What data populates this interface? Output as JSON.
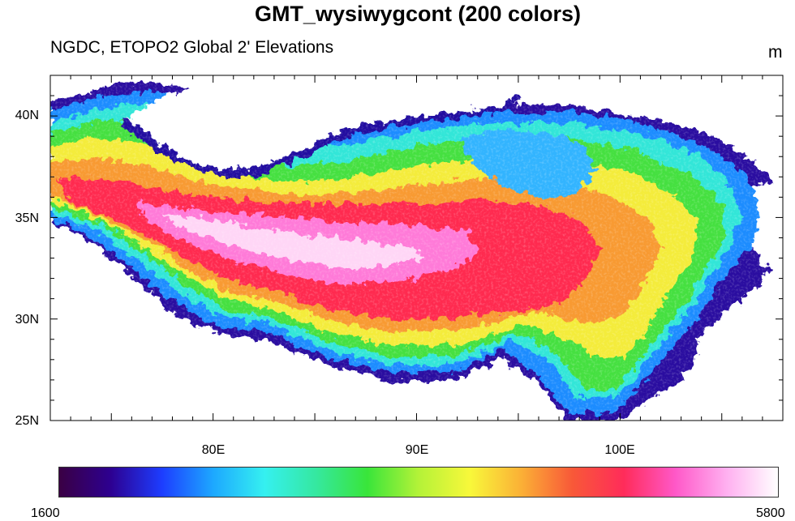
{
  "title": "GMT_wysiwygcont (200 colors)",
  "subtitle": "NGDC, ETOPO2 Global 2' Elevations",
  "units": "m",
  "axes": {
    "y_ticks": [
      "40N",
      "35N",
      "30N",
      "25N"
    ],
    "x_ticks": [
      "80E",
      "90E",
      "100E"
    ]
  },
  "colorbar": {
    "min_label": "1600",
    "max_label": "5800",
    "colors": [
      "#3a0044",
      "#2d0090",
      "#1d3dff",
      "#1da8ff",
      "#35f0f0",
      "#35e8a0",
      "#39e53a",
      "#b4f238",
      "#f8f83a",
      "#fbb036",
      "#f85838",
      "#ff2c5a",
      "#ff58c8",
      "#ffb0f0",
      "#ffffff"
    ]
  },
  "chart_data": {
    "type": "heatmap",
    "title": "GMT_wysiwygcont (200 colors)",
    "subtitle": "NGDC, ETOPO2 Global 2' Elevations",
    "colorbar_range": [
      1600,
      5800
    ],
    "lon_range": [
      72,
      108
    ],
    "lat_range": [
      25,
      42
    ],
    "y_ticks": [
      "40N",
      "35N",
      "30N",
      "25N"
    ],
    "x_ticks": [
      "80E",
      "90E",
      "100E"
    ]
  }
}
